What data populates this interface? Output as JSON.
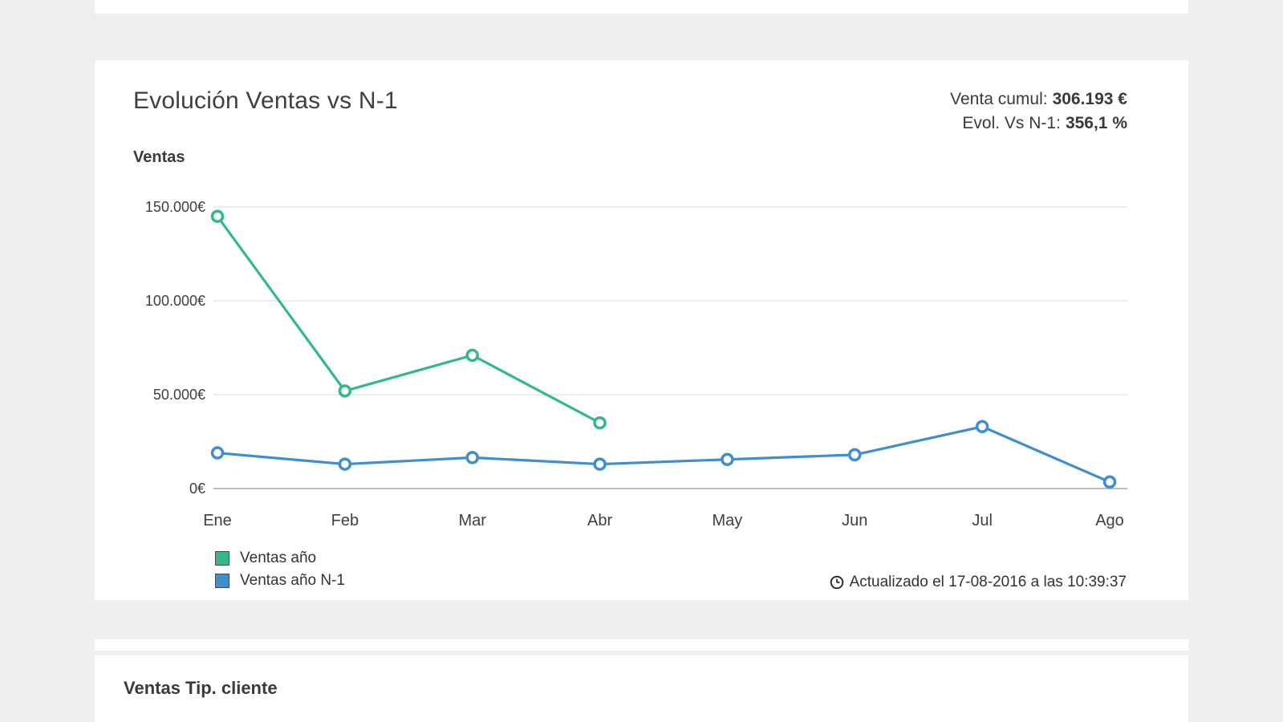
{
  "colors": {
    "page_background": "#efefef",
    "card_background": "#ffffff",
    "series_green": "#35b885",
    "series_blue": "#3e8ed0",
    "gridline": "#e5e5e5",
    "axis_line": "#bdbdbd"
  },
  "card": {
    "title": "Evolución Ventas vs N-1",
    "stats": [
      {
        "label": "Venta cumul:",
        "value": "306.193 €"
      },
      {
        "label": "Evol. Vs N-1:",
        "value": "356,1 %"
      }
    ],
    "y_axis_title": "Ventas",
    "updated": "Actualizado el 17-08-2016 a las 10:39:37"
  },
  "chart_data": {
    "type": "line",
    "title": "Evolución Ventas vs N-1",
    "ylabel": "Ventas",
    "xlabel": "",
    "categories": [
      "Ene",
      "Feb",
      "Mar",
      "Abr",
      "May",
      "Jun",
      "Jul",
      "Ago"
    ],
    "series": [
      {
        "name": "Ventas año",
        "color": "#35b885",
        "values": [
          145000,
          52000,
          71000,
          35000,
          null,
          null,
          null,
          null
        ]
      },
      {
        "name": "Ventas año N-1",
        "color": "#3e8ed0",
        "values": [
          19000,
          13000,
          16500,
          13000,
          15500,
          18000,
          33000,
          3500
        ]
      }
    ],
    "yticks": [
      {
        "label": "150.000€",
        "value": 150000
      },
      {
        "label": "100.000€",
        "value": 100000
      },
      {
        "label": "50.000€",
        "value": 50000
      },
      {
        "label": "0€",
        "value": 0
      }
    ],
    "ylim": [
      0,
      150000
    ],
    "grid": true,
    "legend_position": "bottom-left"
  },
  "next_card": {
    "title": "Ventas Tip. cliente"
  }
}
